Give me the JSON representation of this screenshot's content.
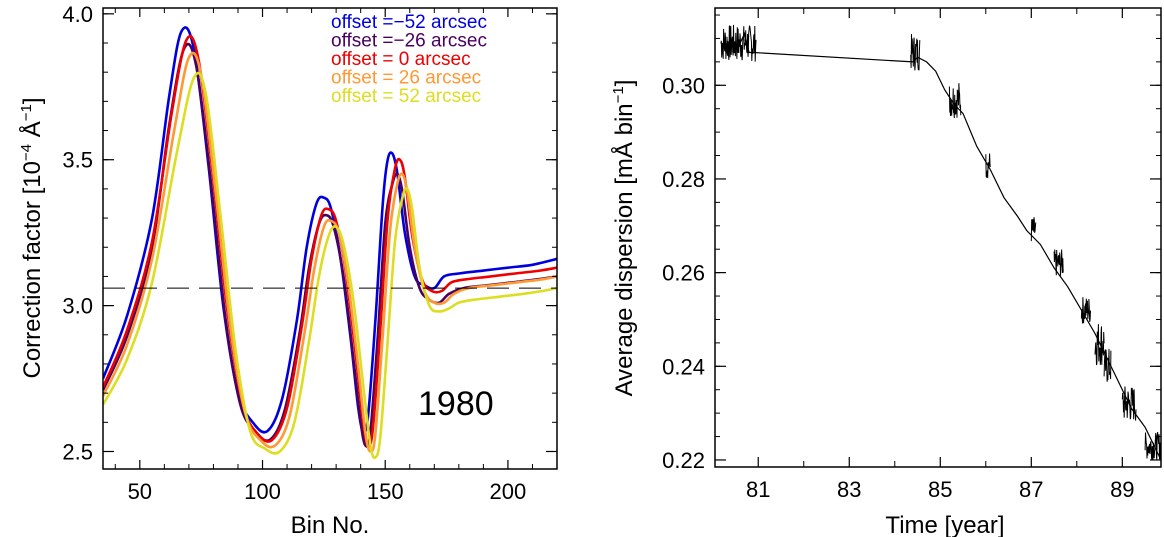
{
  "chart_data": [
    {
      "type": "line",
      "xlabel": "Bin No.",
      "ylabel_text": "Correction factor [10",
      "ylabel_exp": "−4",
      "ylabel_unit": " Å",
      "ylabel_unit_exp": "−1",
      "ylabel_close": "]",
      "xlim": [
        35,
        220
      ],
      "ylim": [
        2.44,
        4.02
      ],
      "xticks": [
        50,
        100,
        150,
        200
      ],
      "yticks": [
        2.5,
        3.0,
        3.5,
        4.0
      ],
      "ytick_labels": [
        "2.5",
        "3.0",
        "3.5",
        "4.0"
      ],
      "reference_line": {
        "y": 3.06,
        "style": "dashed"
      },
      "annotation": "1980",
      "legend_position": "top-right",
      "series": [
        {
          "name": "offset =−52 arcsec",
          "color": "#0000dd",
          "shift": -3,
          "amp": 1.04,
          "base_off": 0.05,
          "points": [
            [
              35,
              2.75
            ],
            [
              45,
              2.97
            ],
            [
              55,
              3.3
            ],
            [
              62,
              3.72
            ],
            [
              67,
              3.94
            ],
            [
              72,
              3.88
            ],
            [
              78,
              3.48
            ],
            [
              84,
              3.0
            ],
            [
              90,
              2.7
            ],
            [
              96,
              2.6
            ],
            [
              102,
              2.57
            ],
            [
              108,
              2.68
            ],
            [
              114,
              2.95
            ],
            [
              118,
              3.2
            ],
            [
              122,
              3.35
            ],
            [
              125,
              3.37
            ],
            [
              128,
              3.33
            ],
            [
              132,
              3.15
            ],
            [
              136,
              2.88
            ],
            [
              139,
              2.65
            ],
            [
              141,
              2.57
            ],
            [
              143,
              2.62
            ],
            [
              146,
              2.95
            ],
            [
              149,
              3.35
            ],
            [
              151,
              3.5
            ],
            [
              153,
              3.52
            ],
            [
              155,
              3.45
            ],
            [
              158,
              3.25
            ],
            [
              162,
              3.1
            ],
            [
              166,
              3.07
            ],
            [
              170,
              3.06
            ],
            [
              174,
              3.1
            ],
            [
              180,
              3.11
            ],
            [
              190,
              3.12
            ],
            [
              200,
              3.13
            ],
            [
              210,
              3.14
            ],
            [
              220,
              3.16
            ]
          ]
        },
        {
          "name": "offset =−26 arcsec",
          "color": "#4a0060",
          "shift": -1,
          "amp": 1.0,
          "base_off": 0.0,
          "points": [
            [
              35,
              2.71
            ],
            [
              45,
              2.9
            ],
            [
              55,
              3.2
            ],
            [
              62,
              3.62
            ],
            [
              68,
              3.88
            ],
            [
              73,
              3.82
            ],
            [
              79,
              3.42
            ],
            [
              85,
              2.95
            ],
            [
              91,
              2.66
            ],
            [
              97,
              2.57
            ],
            [
              103,
              2.54
            ],
            [
              109,
              2.64
            ],
            [
              115,
              2.9
            ],
            [
              119,
              3.13
            ],
            [
              123,
              3.28
            ],
            [
              126,
              3.31
            ],
            [
              129,
              3.27
            ],
            [
              133,
              3.1
            ],
            [
              137,
              2.82
            ],
            [
              140,
              2.6
            ],
            [
              142,
              2.52
            ],
            [
              144,
              2.57
            ],
            [
              147,
              2.9
            ],
            [
              150,
              3.28
            ],
            [
              153,
              3.42
            ],
            [
              155,
              3.45
            ],
            [
              157,
              3.39
            ],
            [
              160,
              3.2
            ],
            [
              164,
              3.06
            ],
            [
              168,
              3.02
            ],
            [
              172,
              3.01
            ],
            [
              176,
              3.04
            ],
            [
              182,
              3.06
            ],
            [
              192,
              3.07
            ],
            [
              202,
              3.08
            ],
            [
              212,
              3.09
            ],
            [
              220,
              3.1
            ]
          ]
        },
        {
          "name": "offset =  0 arcsec",
          "color": "#ee0000",
          "shift": 0,
          "amp": 1.0,
          "base_off": 0.0,
          "points": [
            [
              35,
              2.72
            ],
            [
              45,
              2.92
            ],
            [
              55,
              3.22
            ],
            [
              63,
              3.66
            ],
            [
              69,
              3.91
            ],
            [
              74,
              3.84
            ],
            [
              80,
              3.43
            ],
            [
              86,
              2.96
            ],
            [
              92,
              2.66
            ],
            [
              98,
              2.56
            ],
            [
              104,
              2.54
            ],
            [
              110,
              2.65
            ],
            [
              116,
              2.93
            ],
            [
              120,
              3.16
            ],
            [
              124,
              3.31
            ],
            [
              127,
              3.33
            ],
            [
              130,
              3.29
            ],
            [
              134,
              3.11
            ],
            [
              138,
              2.83
            ],
            [
              141,
              2.6
            ],
            [
              143,
              2.52
            ],
            [
              145,
              2.58
            ],
            [
              148,
              2.92
            ],
            [
              151,
              3.3
            ],
            [
              154,
              3.47
            ],
            [
              156,
              3.5
            ],
            [
              158,
              3.44
            ],
            [
              161,
              3.24
            ],
            [
              165,
              3.09
            ],
            [
              169,
              3.05
            ],
            [
              173,
              3.05
            ],
            [
              177,
              3.08
            ],
            [
              183,
              3.09
            ],
            [
              193,
              3.1
            ],
            [
              203,
              3.11
            ],
            [
              213,
              3.12
            ],
            [
              220,
              3.13
            ]
          ]
        },
        {
          "name": "offset = 26 arcsec",
          "color": "#ff9933",
          "shift": 1,
          "amp": 1.0,
          "base_off": 0.0,
          "points": [
            [
              35,
              2.69
            ],
            [
              45,
              2.87
            ],
            [
              55,
              3.16
            ],
            [
              64,
              3.6
            ],
            [
              70,
              3.85
            ],
            [
              75,
              3.79
            ],
            [
              81,
              3.38
            ],
            [
              87,
              2.92
            ],
            [
              93,
              2.63
            ],
            [
              99,
              2.54
            ],
            [
              105,
              2.52
            ],
            [
              111,
              2.62
            ],
            [
              117,
              2.9
            ],
            [
              121,
              3.12
            ],
            [
              125,
              3.27
            ],
            [
              128,
              3.29
            ],
            [
              131,
              3.25
            ],
            [
              135,
              3.07
            ],
            [
              139,
              2.79
            ],
            [
              142,
              2.56
            ],
            [
              144,
              2.5
            ],
            [
              146,
              2.56
            ],
            [
              149,
              2.9
            ],
            [
              152,
              3.26
            ],
            [
              155,
              3.42
            ],
            [
              157,
              3.45
            ],
            [
              159,
              3.39
            ],
            [
              162,
              3.2
            ],
            [
              166,
              3.05
            ],
            [
              170,
              3.01
            ],
            [
              174,
              3.01
            ],
            [
              178,
              3.04
            ],
            [
              184,
              3.06
            ],
            [
              194,
              3.07
            ],
            [
              204,
              3.08
            ],
            [
              214,
              3.09
            ],
            [
              220,
              3.1
            ]
          ]
        },
        {
          "name": "offset = 52 arcsec",
          "color": "#dddd22",
          "shift": 3,
          "amp": 1.0,
          "base_off": -0.04,
          "points": [
            [
              35,
              2.66
            ],
            [
              45,
              2.82
            ],
            [
              55,
              3.08
            ],
            [
              65,
              3.52
            ],
            [
              72,
              3.78
            ],
            [
              77,
              3.72
            ],
            [
              83,
              3.3
            ],
            [
              89,
              2.85
            ],
            [
              95,
              2.57
            ],
            [
              101,
              2.51
            ],
            [
              107,
              2.5
            ],
            [
              113,
              2.6
            ],
            [
              119,
              2.88
            ],
            [
              123,
              3.1
            ],
            [
              127,
              3.24
            ],
            [
              130,
              3.27
            ],
            [
              133,
              3.21
            ],
            [
              137,
              3.02
            ],
            [
              141,
              2.73
            ],
            [
              144,
              2.52
            ],
            [
              146,
              2.48
            ],
            [
              148,
              2.55
            ],
            [
              151,
              2.88
            ],
            [
              154,
              3.22
            ],
            [
              157,
              3.37
            ],
            [
              159,
              3.4
            ],
            [
              161,
              3.33
            ],
            [
              164,
              3.13
            ],
            [
              168,
              3.0
            ],
            [
              172,
              2.98
            ],
            [
              176,
              2.99
            ],
            [
              180,
              3.01
            ],
            [
              186,
              3.02
            ],
            [
              196,
              3.03
            ],
            [
              206,
              3.04
            ],
            [
              214,
              3.05
            ],
            [
              220,
              3.06
            ]
          ]
        }
      ]
    },
    {
      "type": "line",
      "xlabel": "Time [year]",
      "ylabel_text": "Average dispersion [mÅ bin",
      "ylabel_exp": "−1",
      "ylabel_close": "]",
      "xlim": [
        80.05,
        89.85
      ],
      "ylim": [
        0.2185,
        0.3165
      ],
      "xticks": [
        81,
        83,
        85,
        87,
        89
      ],
      "yticks": [
        0.22,
        0.24,
        0.26,
        0.28,
        0.3
      ],
      "ytick_labels": [
        "0.22",
        "0.24",
        "0.26",
        "0.28",
        "0.30"
      ],
      "points": [
        [
          80.2,
          0.309
        ],
        [
          80.3,
          0.307
        ],
        [
          80.4,
          0.31
        ],
        [
          80.5,
          0.308
        ],
        [
          80.6,
          0.309
        ],
        [
          80.7,
          0.311
        ],
        [
          80.8,
          0.307
        ],
        [
          80.9,
          0.307
        ],
        [
          84.4,
          0.305
        ],
        [
          84.5,
          0.306
        ],
        [
          84.7,
          0.305
        ],
        [
          84.9,
          0.303
        ],
        [
          85.1,
          0.299
        ],
        [
          85.3,
          0.296
        ],
        [
          85.5,
          0.294
        ],
        [
          85.8,
          0.287
        ],
        [
          86.1,
          0.282
        ],
        [
          86.4,
          0.276
        ],
        [
          86.7,
          0.272
        ],
        [
          86.9,
          0.269
        ],
        [
          87.2,
          0.266
        ],
        [
          87.5,
          0.261
        ],
        [
          87.8,
          0.257
        ],
        [
          88.1,
          0.252
        ],
        [
          88.4,
          0.247
        ],
        [
          88.7,
          0.241
        ],
        [
          88.9,
          0.237
        ],
        [
          89.2,
          0.231
        ],
        [
          89.5,
          0.227
        ],
        [
          89.7,
          0.223
        ],
        [
          89.85,
          0.22
        ]
      ],
      "noise_segments": [
        [
          80.18,
          80.95,
          0.309,
          0.004
        ],
        [
          84.35,
          84.55,
          0.307,
          0.004
        ],
        [
          85.2,
          85.45,
          0.297,
          0.004
        ],
        [
          86.0,
          86.1,
          0.283,
          0.003
        ],
        [
          87.0,
          87.1,
          0.269,
          0.003
        ],
        [
          87.5,
          87.7,
          0.262,
          0.003
        ],
        [
          88.1,
          88.3,
          0.252,
          0.003
        ],
        [
          88.4,
          88.6,
          0.245,
          0.005
        ],
        [
          88.6,
          88.75,
          0.24,
          0.004
        ],
        [
          89.0,
          89.3,
          0.232,
          0.004
        ],
        [
          89.5,
          89.85,
          0.223,
          0.003
        ]
      ]
    }
  ]
}
